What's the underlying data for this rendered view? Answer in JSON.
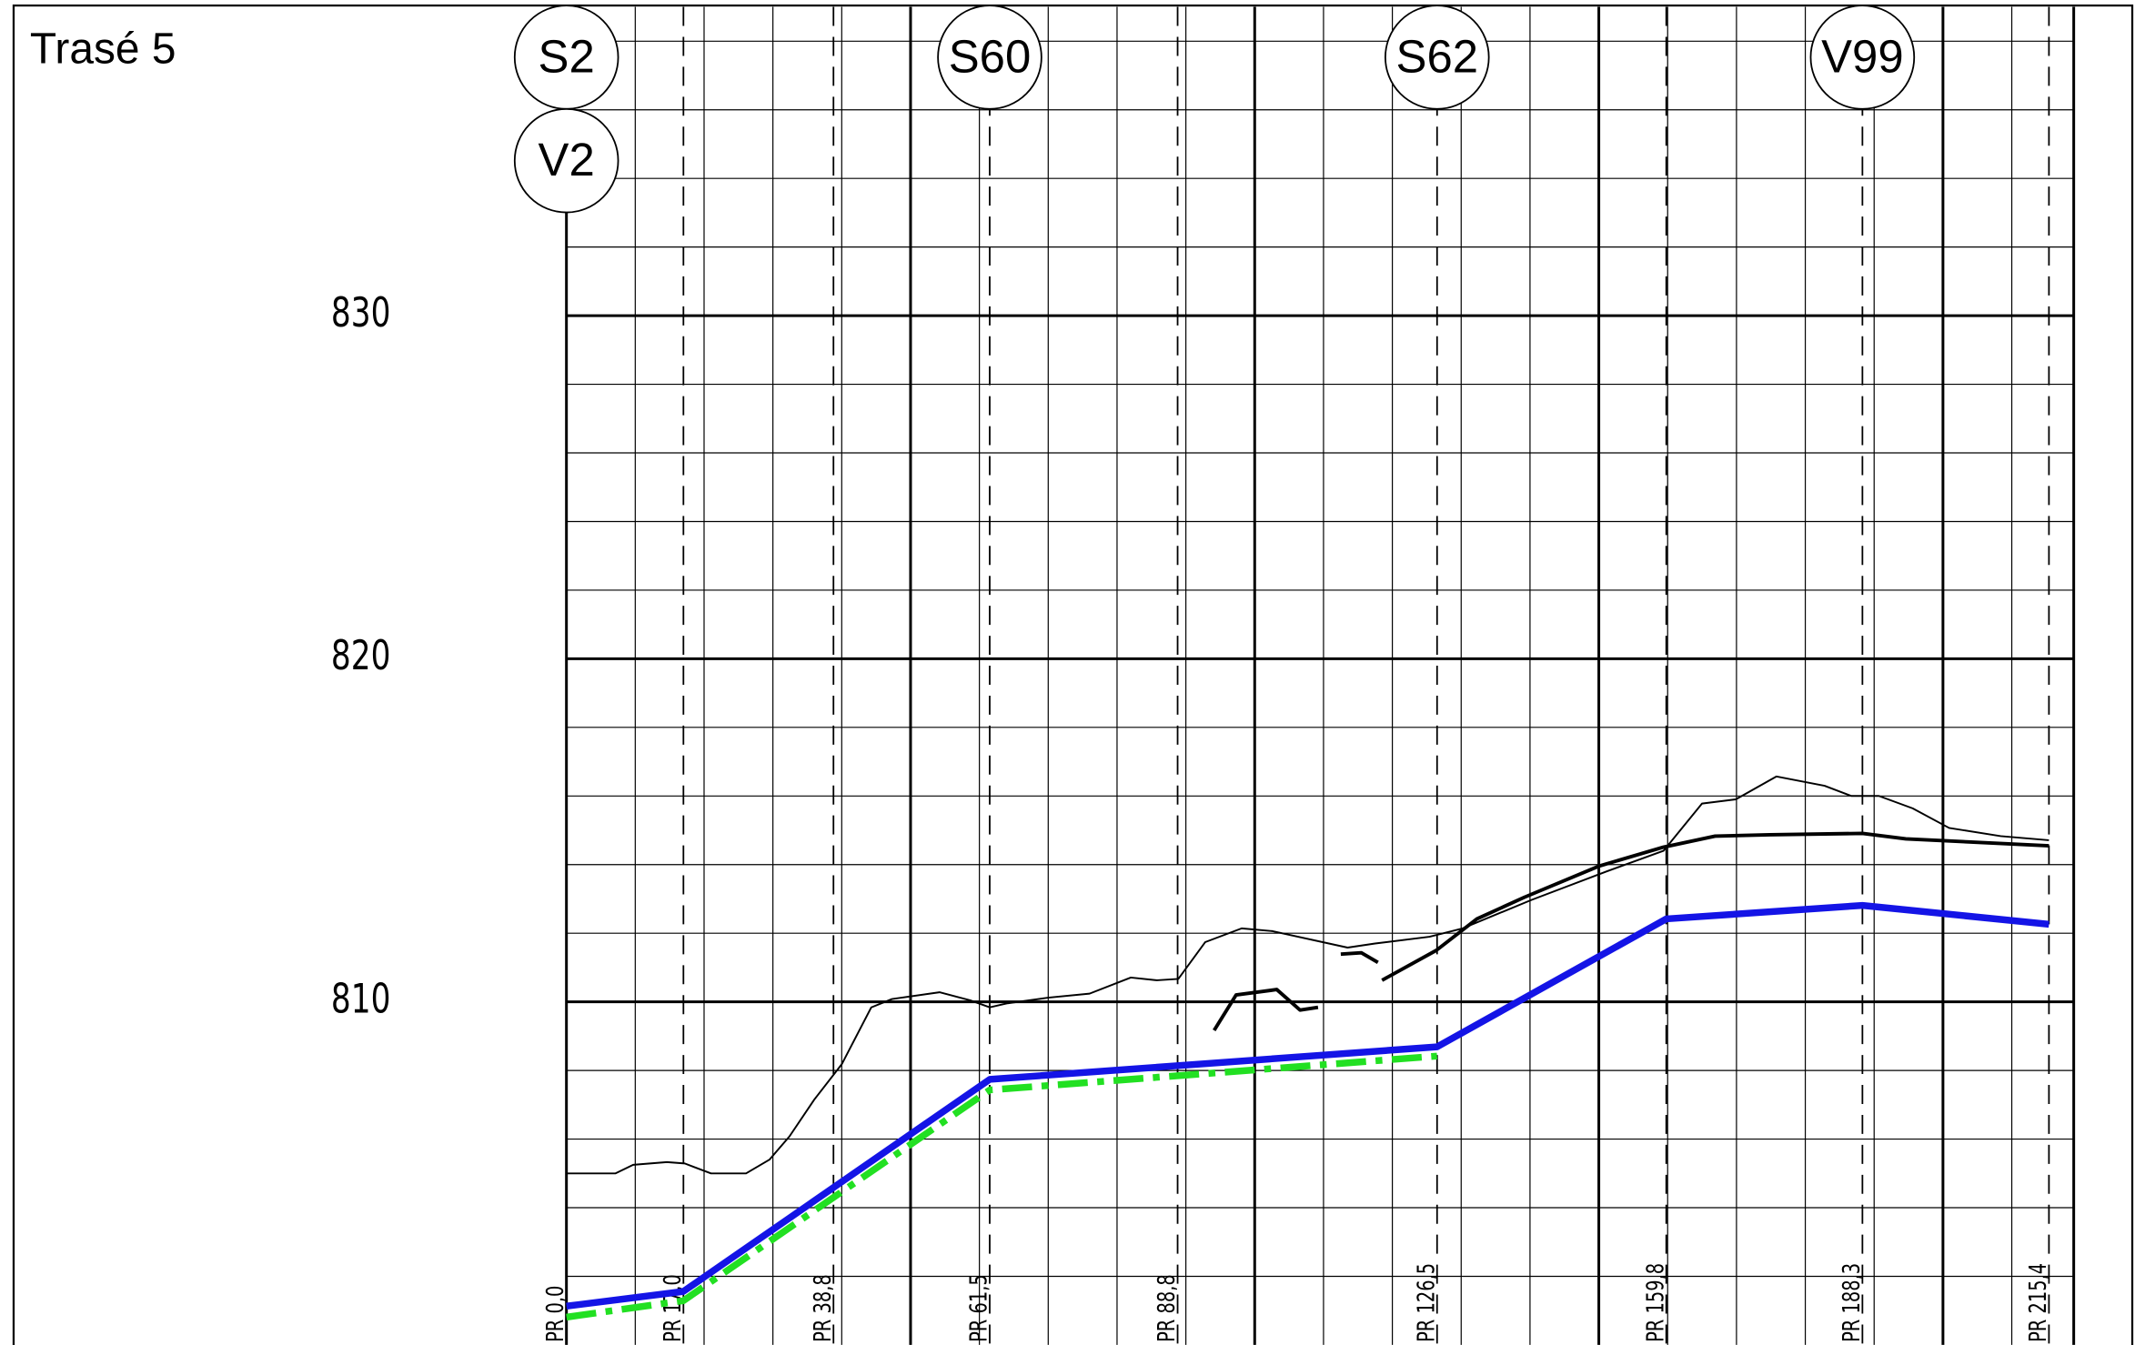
{
  "chart_data": {
    "type": "line",
    "title": "Trasé 5",
    "xlim": [
      0,
      219
    ],
    "ylim": [
      800,
      839
    ],
    "yticks": [
      810,
      820,
      830
    ],
    "ygrid": [
      802,
      804,
      806,
      808,
      810,
      812,
      814,
      816,
      818,
      820,
      822,
      824,
      826,
      828,
      830,
      832,
      834,
      836,
      838
    ],
    "xgrid": [
      0,
      10,
      20,
      30,
      40,
      50,
      60,
      70,
      80,
      90,
      100,
      110,
      120,
      130,
      140,
      150,
      160,
      170,
      180,
      190,
      200,
      210
    ],
    "stations": [
      {
        "value": 0.0,
        "label": "PR 0,0"
      },
      {
        "value": 17.0,
        "label": "PR 17,0"
      },
      {
        "value": 38.8,
        "label": "PR 38,8"
      },
      {
        "value": 61.5,
        "label": "PR 61,5"
      },
      {
        "value": 88.8,
        "label": "PR 88,8"
      },
      {
        "value": 126.5,
        "label": "PR 126,5"
      },
      {
        "value": 159.8,
        "label": "PR 159,8"
      },
      {
        "value": 188.3,
        "label": "PR 188,3"
      },
      {
        "value": 215.4,
        "label": "PR 215,4"
      }
    ],
    "manholes": [
      {
        "x": 0.0,
        "label": "S2"
      },
      {
        "x": 0.0,
        "label": "V2"
      },
      {
        "x": 61.5,
        "label": "S60"
      },
      {
        "x": 126.5,
        "label": "S62"
      },
      {
        "x": 188.3,
        "label": "V99"
      }
    ],
    "series": [
      {
        "color": "#000000",
        "width": 1.3,
        "x": [
          0,
          7.1,
          9.7,
          14.6,
          17.2,
          21,
          26.1,
          29.5,
          32.4,
          36,
          40,
          44.3,
          47.3,
          54.2,
          58.7,
          61.5,
          64.1,
          70,
          76,
          82,
          85.8,
          88.9,
          92.8,
          98.1,
          102.6,
          113.5,
          117.5,
          125.4,
          130.2,
          140.2,
          151.1,
          159.4,
          165,
          169.9,
          175.8,
          182.8,
          186.7,
          190.7,
          195.6,
          200.9,
          208.4,
          215.4
        ],
        "values": [
          805.0,
          805.0,
          805.25,
          805.33,
          805.29,
          805.0,
          805.0,
          805.4,
          806.08,
          807.15,
          808.18,
          809.84,
          810.08,
          810.28,
          810.04,
          809.84,
          809.96,
          810.12,
          810.24,
          810.71,
          810.63,
          810.67,
          811.74,
          812.14,
          812.06,
          811.58,
          811.7,
          811.9,
          812.14,
          812.97,
          813.8,
          814.4,
          815.78,
          815.9,
          816.57,
          816.3,
          816.0,
          816.0,
          815.64,
          815.07,
          814.83,
          814.71
        ]
      },
      {
        "color": "#000000",
        "width": 2.6,
        "x": [
          118.5,
          126.4,
          132.3,
          139.2,
          150.1,
          159.4,
          166.9,
          174.8,
          188.3,
          194.6,
          215.4
        ],
        "values": [
          810.63,
          811.5,
          812.42,
          813.05,
          813.96,
          814.51,
          814.83,
          814.87,
          814.91,
          814.75,
          814.55
        ]
      },
      {
        "color": "#000000",
        "width": 2.6,
        "x": [
          94.1,
          97.3,
          103.2,
          106.6,
          109.2,
          110.0,
          112.5,
          115.5,
          117.9
        ],
        "values": [
          809.17,
          810.2,
          810.36,
          809.76,
          809.84,
          null,
          811.39,
          811.43,
          811.15
        ]
      },
      {
        "color": "#22e022",
        "width": 5,
        "dash": "22 7 5 7",
        "x": [
          0,
          17,
          61.5,
          126.5
        ],
        "values": [
          800.81,
          801.29,
          807.43,
          808.42
        ]
      },
      {
        "color": "#1414e6",
        "width": 5,
        "x": [
          0,
          17,
          61.5,
          126.5,
          159.8,
          188.3,
          215.4
        ],
        "values": [
          801.13,
          801.56,
          807.74,
          808.69,
          812.42,
          812.81,
          812.26
        ]
      }
    ]
  }
}
